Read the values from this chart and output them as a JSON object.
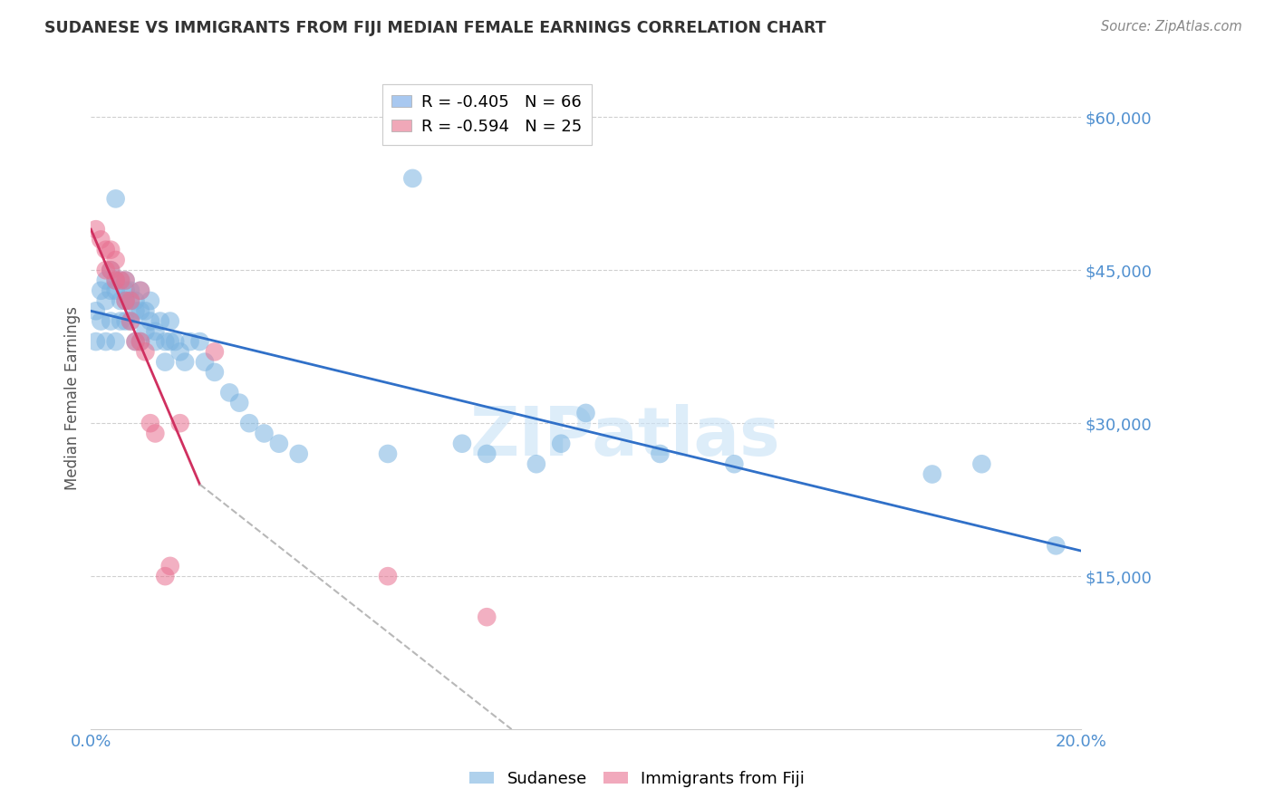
{
  "title": "SUDANESE VS IMMIGRANTS FROM FIJI MEDIAN FEMALE EARNINGS CORRELATION CHART",
  "source": "Source: ZipAtlas.com",
  "ylabel": "Median Female Earnings",
  "xlim": [
    0.0,
    0.2
  ],
  "ylim": [
    0,
    65000
  ],
  "yticks": [
    15000,
    30000,
    45000,
    60000
  ],
  "ytick_labels": [
    "$15,000",
    "$30,000",
    "$45,000",
    "$60,000"
  ],
  "xticks": [
    0.0,
    0.05,
    0.1,
    0.15,
    0.2
  ],
  "xtick_labels": [
    "0.0%",
    "",
    "",
    "",
    "20.0%"
  ],
  "background_color": "#ffffff",
  "grid_color": "#d0d0d0",
  "watermark": "ZIPatlas",
  "legend_r_entries": [
    {
      "label": "R = -0.405   N = 66",
      "color": "#a8c8f0"
    },
    {
      "label": "R = -0.594   N = 25",
      "color": "#f0a8b8"
    }
  ],
  "sudanese_x": [
    0.001,
    0.001,
    0.002,
    0.002,
    0.003,
    0.003,
    0.003,
    0.004,
    0.004,
    0.004,
    0.005,
    0.005,
    0.005,
    0.005,
    0.006,
    0.006,
    0.006,
    0.007,
    0.007,
    0.007,
    0.007,
    0.008,
    0.008,
    0.008,
    0.009,
    0.009,
    0.009,
    0.01,
    0.01,
    0.01,
    0.011,
    0.011,
    0.012,
    0.012,
    0.013,
    0.013,
    0.014,
    0.015,
    0.015,
    0.016,
    0.016,
    0.017,
    0.018,
    0.019,
    0.02,
    0.022,
    0.023,
    0.025,
    0.028,
    0.03,
    0.032,
    0.035,
    0.038,
    0.042,
    0.06,
    0.065,
    0.075,
    0.08,
    0.09,
    0.095,
    0.1,
    0.115,
    0.13,
    0.17,
    0.18,
    0.195
  ],
  "sudanese_y": [
    41000,
    38000,
    43000,
    40000,
    44000,
    42000,
    38000,
    45000,
    43000,
    40000,
    52000,
    44000,
    43000,
    38000,
    44000,
    42000,
    40000,
    44000,
    43000,
    42000,
    40000,
    43000,
    42000,
    40000,
    42000,
    41000,
    38000,
    43000,
    41000,
    38000,
    41000,
    39000,
    42000,
    40000,
    39000,
    38000,
    40000,
    38000,
    36000,
    40000,
    38000,
    38000,
    37000,
    36000,
    38000,
    38000,
    36000,
    35000,
    33000,
    32000,
    30000,
    29000,
    28000,
    27000,
    27000,
    54000,
    28000,
    27000,
    26000,
    28000,
    31000,
    27000,
    26000,
    25000,
    26000,
    18000
  ],
  "fiji_x": [
    0.001,
    0.002,
    0.003,
    0.003,
    0.004,
    0.004,
    0.005,
    0.005,
    0.006,
    0.007,
    0.007,
    0.008,
    0.008,
    0.009,
    0.01,
    0.01,
    0.011,
    0.012,
    0.013,
    0.015,
    0.016,
    0.018,
    0.025,
    0.06,
    0.08
  ],
  "fiji_y": [
    49000,
    48000,
    47000,
    45000,
    47000,
    45000,
    46000,
    44000,
    44000,
    44000,
    42000,
    42000,
    40000,
    38000,
    43000,
    38000,
    37000,
    30000,
    29000,
    15000,
    16000,
    30000,
    37000,
    15000,
    11000
  ],
  "sudanese_color": "#7ab3e0",
  "fiji_color": "#e87090",
  "sudanese_line_color": "#3070c8",
  "fiji_line_color": "#d03060",
  "trendline_blue_x0": 0.0,
  "trendline_blue_y0": 41000,
  "trendline_blue_x1": 0.2,
  "trendline_blue_y1": 17500,
  "trendline_pink_solid_x0": 0.0,
  "trendline_pink_solid_y0": 49000,
  "trendline_pink_solid_x1": 0.022,
  "trendline_pink_solid_y1": 24000,
  "trendline_pink_dash_x0": 0.022,
  "trendline_pink_dash_y0": 24000,
  "trendline_pink_dash_x1": 0.085,
  "trendline_pink_dash_y1": 0,
  "axis_color": "#5090d0",
  "ylabel_color": "#555555",
  "title_color": "#333333",
  "source_color": "#888888"
}
